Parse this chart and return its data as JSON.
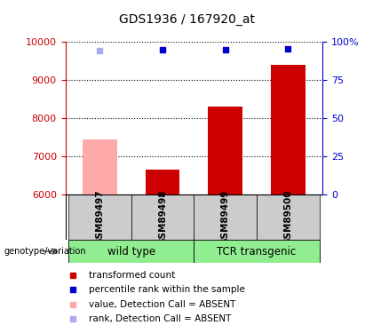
{
  "title": "GDS1936 / 167920_at",
  "samples": [
    "GSM89497",
    "GSM89498",
    "GSM89499",
    "GSM89500"
  ],
  "bar_values": [
    7450,
    6650,
    8300,
    9400
  ],
  "bar_colors": [
    "#ffaaaa",
    "#cc0000",
    "#cc0000",
    "#cc0000"
  ],
  "blue_square_values": [
    9760,
    9780,
    9790,
    9800
  ],
  "blue_square_colors": [
    "#aaaaee",
    "#0000cc",
    "#0000cc",
    "#0000cc"
  ],
  "ylim_left": [
    6000,
    10000
  ],
  "ylim_right": [
    0,
    100
  ],
  "yticks_left": [
    6000,
    7000,
    8000,
    9000,
    10000
  ],
  "yticks_right": [
    0,
    25,
    50,
    75,
    100
  ],
  "yticklabels_right": [
    "0",
    "25",
    "50",
    "75",
    "100%"
  ],
  "groups": [
    {
      "label": "wild type",
      "samples": [
        0,
        1
      ],
      "color": "#90ee90"
    },
    {
      "label": "TCR transgenic",
      "samples": [
        2,
        3
      ],
      "color": "#90ee90"
    }
  ],
  "genotype_label": "genotype/variation",
  "legend": [
    {
      "label": "transformed count",
      "color": "#cc0000"
    },
    {
      "label": "percentile rank within the sample",
      "color": "#0000cc"
    },
    {
      "label": "value, Detection Call = ABSENT",
      "color": "#ffaaaa"
    },
    {
      "label": "rank, Detection Call = ABSENT",
      "color": "#aaaaee"
    }
  ],
  "bar_width": 0.55,
  "left_axis_color": "#cc0000",
  "right_axis_color": "#0000cc",
  "sample_label_box_color": "#cccccc",
  "title_fontsize": 10,
  "legend_fontsize": 7.5,
  "tick_fontsize": 8
}
